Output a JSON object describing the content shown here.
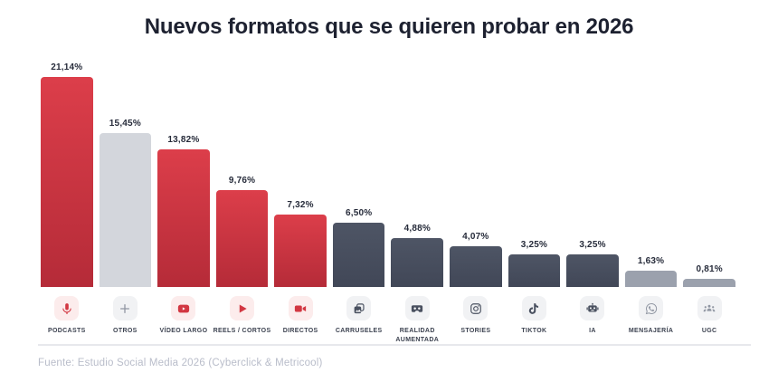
{
  "title": "Nuevos formatos que se quieren probar en 2026",
  "source": "Fuente: Estudio Social Media 2026 (Cyberclick & Metricool)",
  "palette": {
    "red_top": "#dc3e4a",
    "red_bottom": "#b52b38",
    "dark_top": "#4e5565",
    "dark_bottom": "#414757",
    "gray_light": "#d3d6dc",
    "gray_mid": "#9ba1ad",
    "chip_pink": "#fcecec",
    "chip_gray": "#f1f2f4",
    "icon_red": "#d23742",
    "icon_dark": "#4a5160",
    "icon_gray": "#9096a2",
    "value_label": "#262b3a",
    "title_color": "#1d2130",
    "source_color": "#b9bdca"
  },
  "chart_data": {
    "type": "bar",
    "title": "Nuevos formatos que se quieren probar en 2026",
    "xlabel": "",
    "ylabel": "",
    "ylim": [
      0,
      22
    ],
    "grid": false,
    "legend": false,
    "value_label_format": "comma-decimal percent",
    "categories": [
      "PODCASTS",
      "OTROS",
      "VÍDEO LARGO",
      "REELS / CORTOS",
      "DIRECTOS",
      "CARRUSELES",
      "REALIDAD AUMENTADA",
      "STORIES",
      "TIKTOK",
      "IA",
      "MENSAJERÍA",
      "UGC"
    ],
    "values": [
      21.14,
      15.45,
      13.82,
      9.76,
      7.32,
      6.5,
      4.88,
      4.07,
      3.25,
      3.25,
      1.63,
      0.81
    ],
    "bars": [
      {
        "label": "PODCASTS",
        "value": 21.14,
        "display": "21,14%",
        "bar_color": "red",
        "icon": "microphone-icon",
        "chip": "pink",
        "icon_color": "red"
      },
      {
        "label": "OTROS",
        "value": 15.45,
        "display": "15,45%",
        "bar_color": "gray_light",
        "icon": "plus-icon",
        "chip": "gray",
        "icon_color": "gray"
      },
      {
        "label": "VÍDEO LARGO",
        "value": 13.82,
        "display": "13,82%",
        "bar_color": "red",
        "icon": "youtube-icon",
        "chip": "pink",
        "icon_color": "red"
      },
      {
        "label": "REELS / CORTOS",
        "value": 9.76,
        "display": "9,76%",
        "bar_color": "red",
        "icon": "play-icon",
        "chip": "pink",
        "icon_color": "red"
      },
      {
        "label": "DIRECTOS",
        "value": 7.32,
        "display": "7,32%",
        "bar_color": "red",
        "icon": "video-camera-icon",
        "chip": "pink",
        "icon_color": "red"
      },
      {
        "label": "CARRUSELES",
        "value": 6.5,
        "display": "6,50%",
        "bar_color": "dark",
        "icon": "carousel-icon",
        "chip": "gray",
        "icon_color": "dark"
      },
      {
        "label": "REALIDAD AUMENTADA",
        "value": 4.88,
        "display": "4,88%",
        "bar_color": "dark",
        "icon": "vr-headset-icon",
        "chip": "gray",
        "icon_color": "dark"
      },
      {
        "label": "STORIES",
        "value": 4.07,
        "display": "4,07%",
        "bar_color": "dark",
        "icon": "instagram-icon",
        "chip": "gray",
        "icon_color": "dark"
      },
      {
        "label": "TIKTOK",
        "value": 3.25,
        "display": "3,25%",
        "bar_color": "dark",
        "icon": "tiktok-icon",
        "chip": "gray",
        "icon_color": "dark"
      },
      {
        "label": "IA",
        "value": 3.25,
        "display": "3,25%",
        "bar_color": "dark",
        "icon": "robot-icon",
        "chip": "gray",
        "icon_color": "dark"
      },
      {
        "label": "MENSAJERÍA",
        "value": 1.63,
        "display": "1,63%",
        "bar_color": "gray_mid",
        "icon": "whatsapp-icon",
        "chip": "gray",
        "icon_color": "gray"
      },
      {
        "label": "UGC",
        "value": 0.81,
        "display": "0,81%",
        "bar_color": "gray_mid",
        "icon": "users-icon",
        "chip": "gray",
        "icon_color": "gray"
      }
    ]
  }
}
